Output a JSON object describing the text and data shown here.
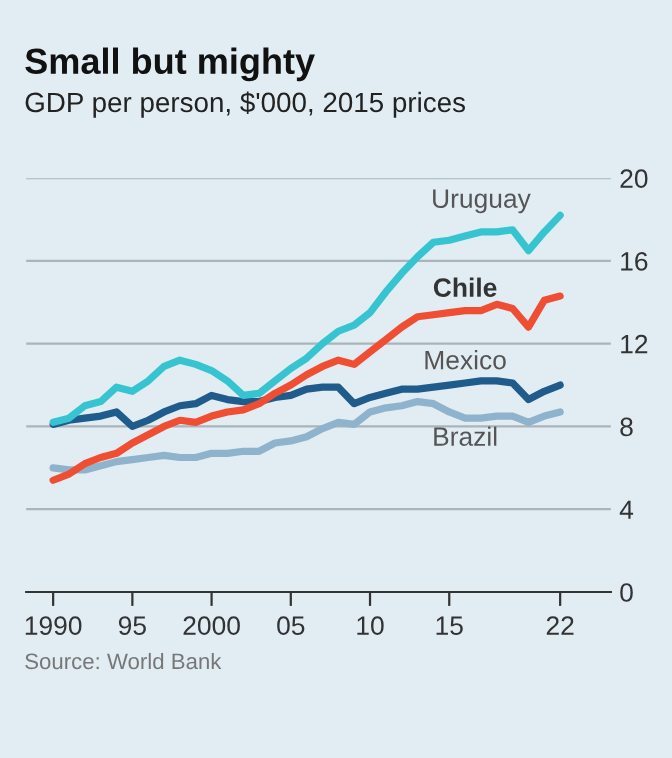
{
  "chart_data": {
    "type": "line",
    "title": "Small but mighty",
    "subtitle": "GDP per person, $'000, 2015 prices",
    "annotations": [
      "Source: World Bank"
    ],
    "x": [
      1990,
      1991,
      1992,
      1993,
      1994,
      1995,
      1996,
      1997,
      1998,
      1999,
      2000,
      2001,
      2002,
      2003,
      2004,
      2005,
      2006,
      2007,
      2008,
      2009,
      2010,
      2011,
      2012,
      2013,
      2014,
      2015,
      2016,
      2017,
      2018,
      2019,
      2020,
      2021,
      2022
    ],
    "series": [
      {
        "name": "Uruguay",
        "color": "#36c4d0",
        "values": [
          8.2,
          8.4,
          9.0,
          9.2,
          9.9,
          9.7,
          10.2,
          10.9,
          11.2,
          11.0,
          10.7,
          10.2,
          9.5,
          9.6,
          10.2,
          10.8,
          11.3,
          12.0,
          12.6,
          12.9,
          13.5,
          14.5,
          15.4,
          16.2,
          16.9,
          17.0,
          17.2,
          17.4,
          17.4,
          17.5,
          16.5,
          17.4,
          18.2
        ]
      },
      {
        "name": "Chile",
        "color": "#f04e33",
        "values": [
          5.4,
          5.7,
          6.2,
          6.5,
          6.7,
          7.2,
          7.6,
          8.0,
          8.3,
          8.2,
          8.5,
          8.7,
          8.8,
          9.1,
          9.6,
          10.0,
          10.5,
          10.9,
          11.2,
          11.0,
          11.6,
          12.2,
          12.8,
          13.3,
          13.4,
          13.5,
          13.6,
          13.6,
          13.9,
          13.7,
          12.8,
          14.1,
          14.3
        ]
      },
      {
        "name": "Mexico",
        "color": "#1f5c8b",
        "values": [
          8.1,
          8.3,
          8.4,
          8.5,
          8.7,
          8.0,
          8.3,
          8.7,
          9.0,
          9.1,
          9.5,
          9.3,
          9.2,
          9.2,
          9.4,
          9.5,
          9.8,
          9.9,
          9.9,
          9.1,
          9.4,
          9.6,
          9.8,
          9.8,
          9.9,
          10.0,
          10.1,
          10.2,
          10.2,
          10.1,
          9.3,
          9.7,
          10.0
        ]
      },
      {
        "name": "Brazil",
        "color": "#8fb3cc",
        "values": [
          6.0,
          5.9,
          5.9,
          6.1,
          6.3,
          6.4,
          6.5,
          6.6,
          6.5,
          6.5,
          6.7,
          6.7,
          6.8,
          6.8,
          7.2,
          7.3,
          7.5,
          7.9,
          8.2,
          8.1,
          8.7,
          8.9,
          9.0,
          9.2,
          9.1,
          8.7,
          8.4,
          8.4,
          8.5,
          8.5,
          8.2,
          8.5,
          8.7
        ]
      }
    ],
    "xlim": [
      1988.3,
      2025.2
    ],
    "xticks": [
      1990,
      {
        "value": 1995,
        "label": "95"
      },
      2000,
      {
        "value": 2005,
        "label": "05"
      },
      {
        "value": 2010,
        "label": "10"
      },
      {
        "value": 2015,
        "label": "15"
      },
      {
        "value": 2022,
        "label": "22"
      }
    ],
    "ylim": [
      0,
      20
    ],
    "yticks": [
      0,
      4,
      8,
      12,
      16,
      20
    ],
    "grid": "y",
    "legend": false,
    "marker": "none",
    "line_style": "solid"
  }
}
